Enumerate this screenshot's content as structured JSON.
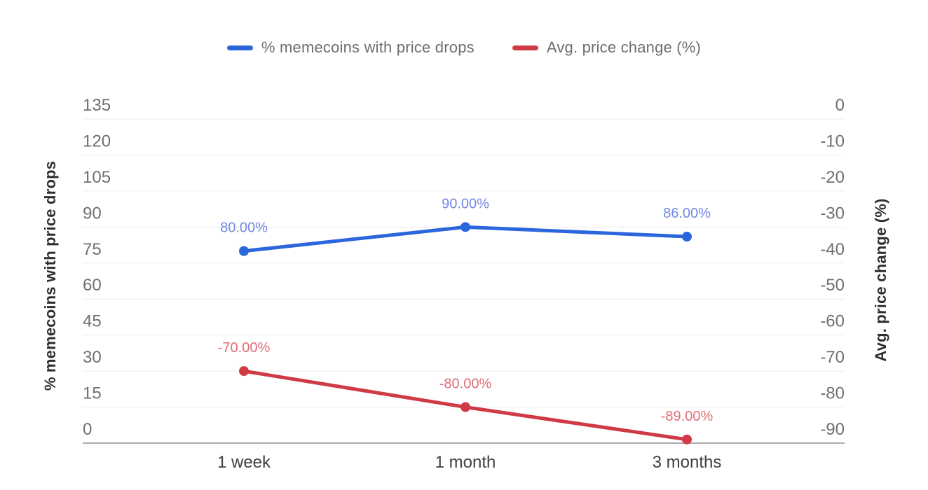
{
  "page": {
    "background": "#ffffff"
  },
  "legend": {
    "items": [
      {
        "label": "% memecoins with price drops",
        "color": "#2c66dd"
      },
      {
        "label": "Avg. price change (%)",
        "color": "#cf3a45"
      }
    ]
  },
  "chart_data": {
    "type": "line",
    "title": "",
    "categories": [
      "1 week",
      "1 month",
      "3 months"
    ],
    "series": [
      {
        "name": "% memecoins with price drops",
        "axis": "left",
        "values": [
          80,
          90,
          86
        ],
        "point_labels": [
          "80.00%",
          "90.00%",
          "86.00%"
        ],
        "color": "#2c66dd",
        "label_color": "#7288e4"
      },
      {
        "name": "Avg. price change (%)",
        "axis": "right",
        "values": [
          -70,
          -80,
          -89
        ],
        "point_labels": [
          "-70.00%",
          "-80.00%",
          "-89.00%"
        ],
        "color": "#cf3a45",
        "label_color": "#e06e78"
      }
    ],
    "left_axis": {
      "title": "% memecoins with price drops",
      "min": 0,
      "max": 135,
      "tick_step": 15,
      "ticks": [
        "135",
        "120",
        "105",
        "90",
        "75",
        "60",
        "45",
        "30",
        "15",
        "0"
      ]
    },
    "right_axis": {
      "title": "Avg. price change (%)",
      "min": -90,
      "max": 0,
      "tick_step": 10,
      "ticks": [
        "0",
        "-10",
        "-20",
        "-30",
        "-40",
        "-50",
        "-60",
        "-70",
        "-80",
        "-90"
      ]
    },
    "grid": true,
    "legend_position": "top"
  },
  "colors": {
    "grid_line": "#ebebeb",
    "axis_line": "#8f8f8f",
    "tick_label": "#6f6f6f",
    "x_label": "#3e3e3e",
    "axis_title": "#2f2f2f",
    "legend_text": "#6e6e6e"
  }
}
